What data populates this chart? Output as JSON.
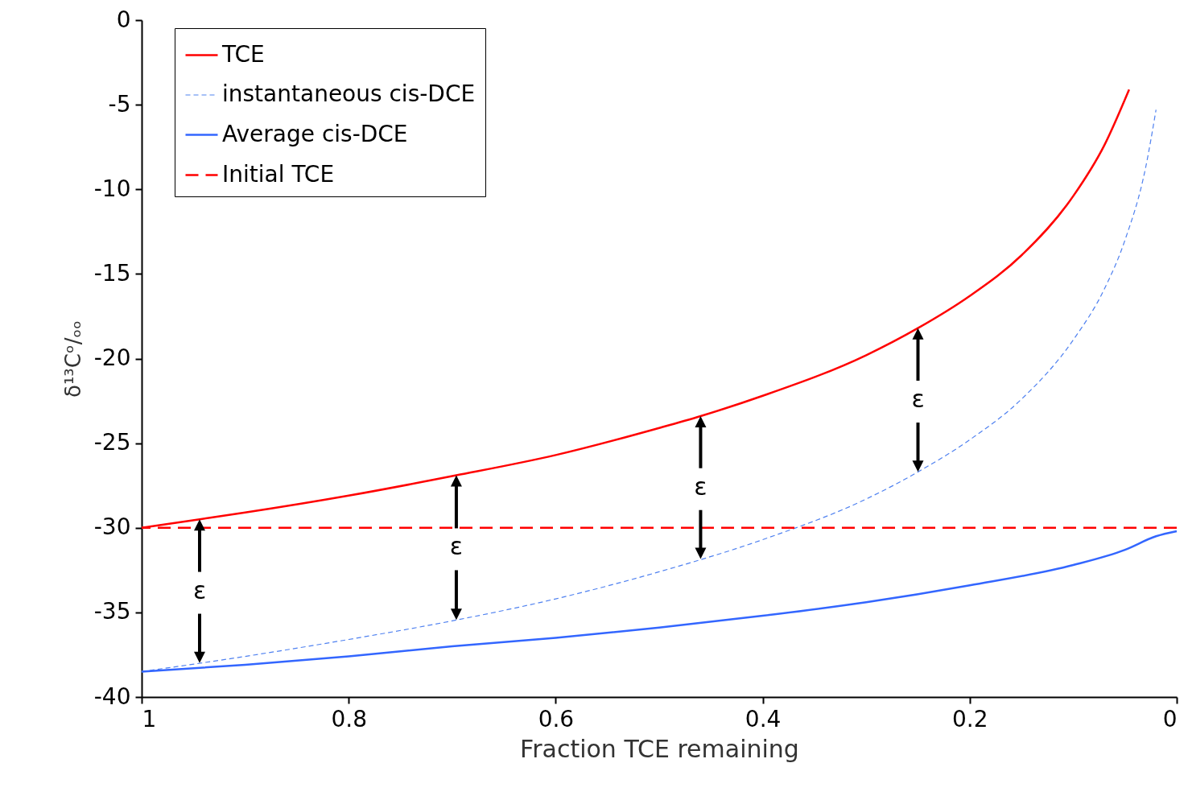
{
  "chart_data": {
    "type": "line",
    "xlabel": "Fraction TCE remaining",
    "ylabel": "δ¹³Cᵒ/ₒₒ",
    "xlim": [
      1,
      0
    ],
    "xticks": [
      1,
      0.8,
      0.6,
      0.4,
      0.2,
      0
    ],
    "ylim": [
      -40,
      0
    ],
    "yticks": [
      0,
      -5,
      -10,
      -15,
      -20,
      -25,
      -30,
      -35,
      -40
    ],
    "grid": false,
    "legend": "top left",
    "marker": "none",
    "series": [
      {
        "name": "TCE",
        "color": "#ff0000",
        "line_style": "solid",
        "x": [
          1,
          0.944,
          0.9,
          0.8,
          0.696,
          0.6,
          0.5,
          0.46,
          0.4,
          0.3,
          0.25,
          0.2,
          0.15,
          0.1,
          0.07,
          0.046
        ],
        "values": [
          -30,
          -29.5,
          -29.1,
          -28.1,
          -26.9,
          -25.7,
          -24.1,
          -23.4,
          -22.2,
          -19.8,
          -18.2,
          -16.3,
          -13.9,
          -10.4,
          -7.4,
          -4.1
        ]
      },
      {
        "name": "instantaneous cis-DCE",
        "color": "#4f81f0",
        "line_style": "dashed",
        "x": [
          1,
          0.9,
          0.8,
          0.7,
          0.6,
          0.5,
          0.4,
          0.3,
          0.25,
          0.2,
          0.15,
          0.1,
          0.07,
          0.05,
          0.03,
          0.02
        ],
        "values": [
          -38.5,
          -37.6,
          -36.6,
          -35.5,
          -34.2,
          -32.6,
          -30.7,
          -28.3,
          -26.7,
          -24.8,
          -22.4,
          -18.9,
          -15.9,
          -13.0,
          -8.7,
          -5.3
        ]
      },
      {
        "name": "Average cis-DCE",
        "color": "#3366ff",
        "line_style": "solid",
        "x": [
          1,
          0.9,
          0.8,
          0.7,
          0.6,
          0.5,
          0.4,
          0.3,
          0.2,
          0.1,
          0.05,
          0.02,
          0
        ],
        "values": [
          -38.5,
          -38.1,
          -37.6,
          -37.0,
          -36.5,
          -35.9,
          -35.2,
          -34.4,
          -33.4,
          -32.2,
          -31.3,
          -30.5,
          -30.2
        ]
      }
    ],
    "ref_lines": [
      {
        "axis": "y",
        "value": -30,
        "label": "Initial TCE",
        "color": "#ff0000",
        "line_style": "dashed"
      }
    ],
    "annotations": [
      {
        "text": "ε",
        "x": 0.944,
        "y": -29.5
      },
      {
        "text": "ε",
        "x": 0.696,
        "y": -26.9
      },
      {
        "text": "ε",
        "x": 0.46,
        "y": -23.4
      },
      {
        "text": "ε",
        "x": 0.25,
        "y": -18.2
      }
    ]
  }
}
